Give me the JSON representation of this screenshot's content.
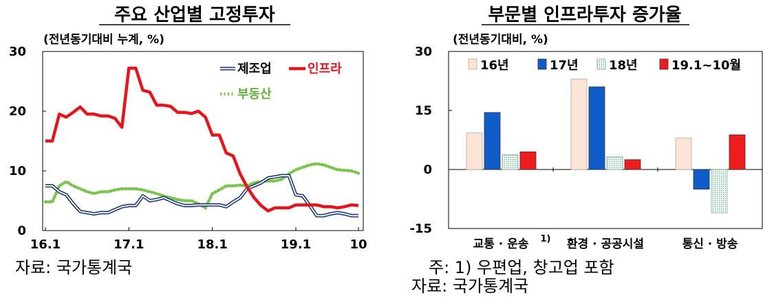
{
  "chart_data": [
    {
      "type": "line",
      "title": "주요 산업별 고정투자",
      "subtitle": "(전년동기대비 누계, %)",
      "x_ticks": [
        "16.1",
        "17.1",
        "18.1",
        "19.1",
        "10"
      ],
      "y_ticks": [
        "30",
        "20",
        "10",
        "0"
      ],
      "ylim": [
        0,
        30
      ],
      "x": [
        "16.1",
        "16.2",
        "16.3",
        "16.4",
        "16.5",
        "16.6",
        "16.7",
        "16.8",
        "16.9",
        "16.10",
        "16.11",
        "16.12",
        "17.1",
        "17.2",
        "17.3",
        "17.4",
        "17.5",
        "17.6",
        "17.7",
        "17.8",
        "17.9",
        "17.10",
        "17.11",
        "17.12",
        "18.1",
        "18.2",
        "18.3",
        "18.4",
        "18.5",
        "18.6",
        "18.7",
        "18.8",
        "18.9",
        "18.10",
        "18.11",
        "18.12",
        "19.1",
        "19.2",
        "19.3",
        "19.4",
        "19.5",
        "19.6",
        "19.7",
        "19.8",
        "19.9",
        "19.10"
      ],
      "series": [
        {
          "name": "제조업",
          "color": "#1f3a7a",
          "values": [
            7.5,
            7.5,
            6.5,
            6.0,
            4.5,
            3.2,
            3.0,
            2.8,
            3.0,
            3.0,
            3.5,
            4.0,
            4.2,
            4.2,
            5.8,
            5.0,
            5.2,
            5.5,
            5.0,
            4.5,
            4.2,
            4.2,
            4.3,
            4.3,
            4.3,
            4.3,
            4.0,
            4.8,
            5.5,
            7.0,
            7.5,
            8.0,
            8.8,
            9.0,
            9.2,
            9.2,
            6.0,
            5.8,
            4.2,
            2.5,
            2.5,
            2.8,
            3.0,
            2.8,
            2.5,
            2.5
          ]
        },
        {
          "name": "인프라",
          "color": "#e8141c",
          "values": [
            15,
            15,
            19.5,
            19,
            19.8,
            20.7,
            19.5,
            19.5,
            19.2,
            19.2,
            18.8,
            17.3,
            27.2,
            27.2,
            23.5,
            23.2,
            21,
            21,
            20.8,
            19.8,
            19.8,
            19.6,
            20,
            19,
            16,
            16,
            13,
            12.5,
            9.5,
            7.3,
            5.5,
            4.2,
            3.3,
            3.8,
            3.8,
            3.8,
            4.3,
            4.3,
            4.3,
            4.3,
            4.0,
            4.0,
            3.8,
            4.0,
            4.3,
            4.2
          ]
        },
        {
          "name": "부동산",
          "color": "#7bc44e",
          "values": [
            4.8,
            4.8,
            7.5,
            8.2,
            7.5,
            7.0,
            6.5,
            6.2,
            6.5,
            6.5,
            6.8,
            7.0,
            7.0,
            7.0,
            6.8,
            6.5,
            6.2,
            5.8,
            5.5,
            5.2,
            5.0,
            5.0,
            4.5,
            3.8,
            6.2,
            6.8,
            7.5,
            7.5,
            7.6,
            7.5,
            8.0,
            8.2,
            8.3,
            8.3,
            8.6,
            9.5,
            10.2,
            10.6,
            11.0,
            11.2,
            11.0,
            10.6,
            10.2,
            10.1,
            10.0,
            9.6
          ]
        }
      ],
      "source": "자료: 국가통계국"
    },
    {
      "type": "bar",
      "title": "부문별 인프라투자 증가율",
      "subtitle": "(전년동기대비, %)",
      "y_ticks": [
        "30",
        "15",
        "0",
        "-15"
      ],
      "ylim": [
        -15,
        30
      ],
      "categories": [
        "교통 · 운송",
        "환경 · 공공시설",
        "통신 · 방송"
      ],
      "category_note": "1)",
      "series": [
        {
          "name": "16년",
          "color": "#fce4d6",
          "values": [
            9.3,
            23.0,
            8.0
          ]
        },
        {
          "name": "17년",
          "color": "#0f5cc9",
          "values": [
            14.5,
            21.0,
            -5.0
          ]
        },
        {
          "name": "18년",
          "color": "#e2f2ec",
          "values": [
            3.8,
            3.2,
            -11.0
          ]
        },
        {
          "name": "19.1~10월",
          "color": "#ee1c1c",
          "values": [
            4.5,
            2.5,
            8.8
          ]
        }
      ],
      "note": "주: 1) 우편업, 창고업 포함",
      "source": "자료: 국가통계국"
    }
  ]
}
